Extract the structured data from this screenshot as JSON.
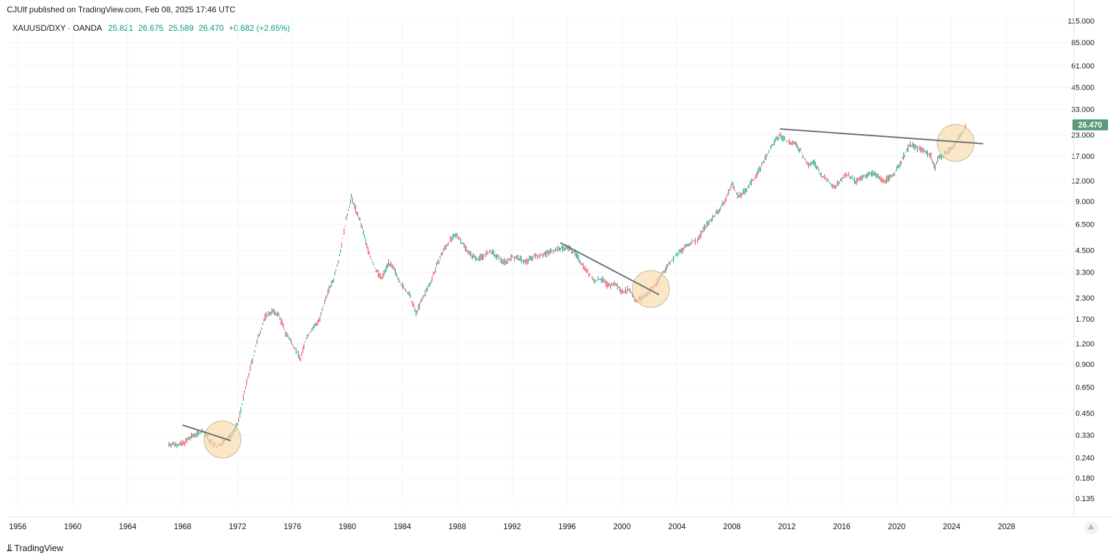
{
  "header": {
    "published": "CJUlf published on TradingView.com, Feb 08, 2025 17:46 UTC"
  },
  "legend": {
    "symbol": "XAUUSD/DXY · OANDA",
    "open": "25.821",
    "high": "26.675",
    "low": "25.589",
    "close": "26.470",
    "change": "+0.682 (+2.65%)"
  },
  "price_label": "26.470",
  "footer": {
    "brand": "TradingView",
    "auto_button": "A"
  },
  "colors": {
    "up": "#089981",
    "down": "#f23645",
    "line": "#6a6d78",
    "circle_fill": "#f9d8a8",
    "circle_stroke": "#c9b79a",
    "price_label_bg": "#5a9a78"
  },
  "chart_data": {
    "type": "line",
    "title": "",
    "scale": "log",
    "y_ticks": [
      "115.000",
      "85.000",
      "61.000",
      "45.000",
      "33.000",
      "23.000",
      "17.000",
      "12.000",
      "9.000",
      "6.500",
      "4.500",
      "3.300",
      "2.300",
      "1.700",
      "1.200",
      "0.900",
      "0.650",
      "0.450",
      "0.330",
      "0.240",
      "0.180",
      "0.135"
    ],
    "x_ticks": [
      "1956",
      "1960",
      "1964",
      "1968",
      "1972",
      "1976",
      "1980",
      "1984",
      "1988",
      "1992",
      "1996",
      "2000",
      "2004",
      "2008",
      "2012",
      "2016",
      "2020",
      "2024",
      "2028"
    ],
    "xlim": [
      1955.3,
      2032.5
    ],
    "ylim": [
      0.12,
      125
    ],
    "series": [
      {
        "x": [
          1967.0,
          1968.0,
          1968.8,
          1969.5,
          1970.0,
          1970.5,
          1971.0,
          1971.5,
          1972.0,
          1972.5,
          1973.0,
          1973.5,
          1974.0,
          1974.5,
          1975.0,
          1975.5,
          1976.0,
          1976.6,
          1977.0,
          1977.5,
          1978.0,
          1978.5,
          1979.0,
          1979.5,
          1980.0,
          1980.3,
          1980.6,
          1981.0,
          1981.5,
          1982.0,
          1982.5,
          1983.0,
          1983.5,
          1984.0,
          1984.5,
          1985.0,
          1985.5,
          1986.0,
          1986.5,
          1987.0,
          1987.5,
          1988.0,
          1988.5,
          1989.0,
          1989.5,
          1990.0,
          1990.5,
          1991.0,
          1991.5,
          1992.0,
          1992.5,
          1993.0,
          1993.5,
          1994.0,
          1994.5,
          1995.0,
          1995.5,
          1996.0,
          1996.5,
          1997.0,
          1997.5,
          1998.0,
          1998.5,
          1999.0,
          1999.5,
          2000.0,
          2000.5,
          2001.0,
          2001.5,
          2002.0,
          2002.5,
          2003.0,
          2003.5,
          2004.0,
          2004.5,
          2005.0,
          2005.5,
          2006.0,
          2006.5,
          2007.0,
          2007.5,
          2008.0,
          2008.5,
          2009.0,
          2009.5,
          2010.0,
          2010.5,
          2011.0,
          2011.5,
          2012.0,
          2012.5,
          2013.0,
          2013.5,
          2014.0,
          2014.5,
          2015.0,
          2015.5,
          2016.0,
          2016.5,
          2017.0,
          2017.5,
          2018.0,
          2018.5,
          2019.0,
          2019.5,
          2020.0,
          2020.5,
          2021.0,
          2021.5,
          2022.0,
          2022.5,
          2022.8,
          2023.0,
          2023.5,
          2024.0,
          2024.5,
          2025.1
        ],
        "y": [
          0.29,
          0.29,
          0.33,
          0.35,
          0.3,
          0.28,
          0.3,
          0.33,
          0.38,
          0.6,
          0.9,
          1.3,
          1.75,
          1.9,
          1.8,
          1.4,
          1.2,
          0.97,
          1.3,
          1.5,
          1.7,
          2.4,
          3.0,
          4.5,
          7.5,
          9.5,
          8.0,
          6.5,
          4.5,
          3.5,
          3.0,
          3.8,
          3.3,
          2.7,
          2.4,
          1.85,
          2.3,
          2.8,
          3.6,
          4.5,
          5.2,
          5.6,
          4.8,
          4.2,
          4.0,
          4.2,
          4.4,
          4.0,
          3.8,
          4.1,
          4.0,
          3.8,
          4.1,
          4.2,
          4.3,
          4.5,
          4.6,
          4.7,
          4.4,
          3.8,
          3.3,
          2.9,
          3.0,
          2.7,
          2.8,
          2.5,
          2.6,
          2.2,
          2.3,
          2.5,
          2.8,
          3.3,
          3.8,
          4.2,
          4.6,
          5.0,
          5.2,
          6.2,
          7.0,
          7.8,
          9.0,
          11.5,
          9.5,
          10.5,
          12.0,
          14.0,
          17.0,
          20.0,
          23.0,
          21.0,
          20.5,
          18.5,
          15.0,
          15.5,
          13.0,
          12.0,
          11.0,
          12.5,
          13.0,
          11.8,
          12.5,
          13.5,
          13.0,
          12.0,
          12.5,
          14.0,
          17.0,
          20.0,
          19.0,
          18.5,
          17.0,
          14.5,
          16.5,
          17.5,
          19.0,
          22.0,
          26.0
        ]
      }
    ],
    "annotations": {
      "trend_lines": [
        {
          "x1": 1968.0,
          "y1": 0.38,
          "x2": 1971.5,
          "y2": 0.305
        },
        {
          "x1": 1995.5,
          "y1": 5.0,
          "x2": 2002.7,
          "y2": 2.4
        },
        {
          "x1": 2011.5,
          "y1": 25.0,
          "x2": 2026.3,
          "y2": 20.3
        }
      ],
      "circles": [
        {
          "x": 1970.9,
          "y": 0.31
        },
        {
          "x": 2002.1,
          "y": 2.6
        },
        {
          "x": 2024.3,
          "y": 20.5
        }
      ]
    }
  }
}
